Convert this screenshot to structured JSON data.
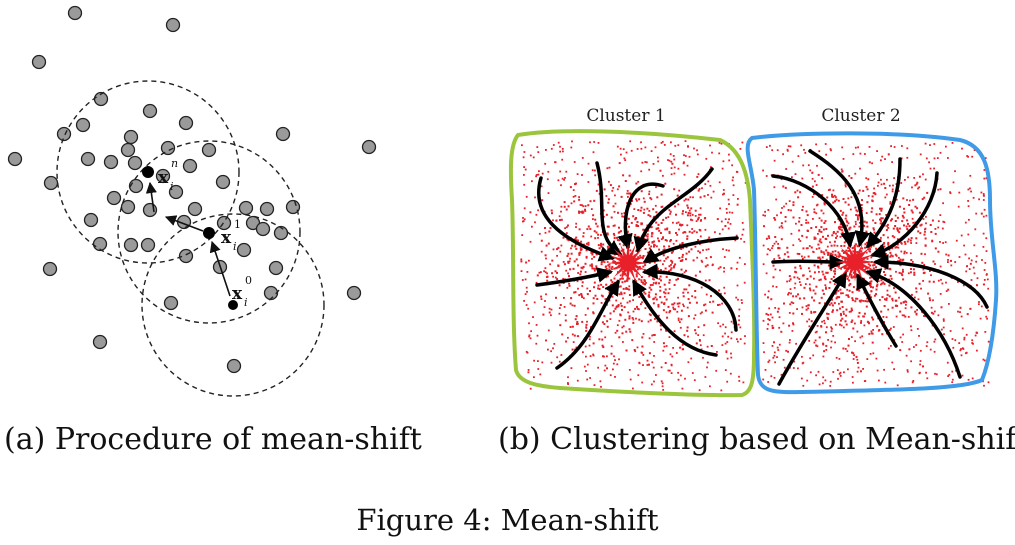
{
  "panel_a": {
    "caption": "(a) Procedure of mean-shift",
    "labels": {
      "x_n": "x",
      "x_n_sub": "i",
      "x_n_sup": "n",
      "x_1": "x",
      "x_1_sub": "i",
      "x_1_sup": "1",
      "x_0": "x",
      "x_0_sub": "i",
      "x_0_sup": "0"
    },
    "colors": {
      "dot_fill": "#9a9a9a",
      "dot_stroke": "#222222",
      "circle": "#222222"
    }
  },
  "panel_b": {
    "caption": "(b) Clustering based on Mean-shift",
    "cluster_1_label": "Cluster 1",
    "cluster_2_label": "Cluster 2",
    "colors": {
      "cluster_1_border": "#9bc53d",
      "cluster_2_border": "#3f9be8",
      "points": "#e8202a",
      "paths": "#000000"
    }
  },
  "figure_caption": "Figure 4: Mean-shift"
}
